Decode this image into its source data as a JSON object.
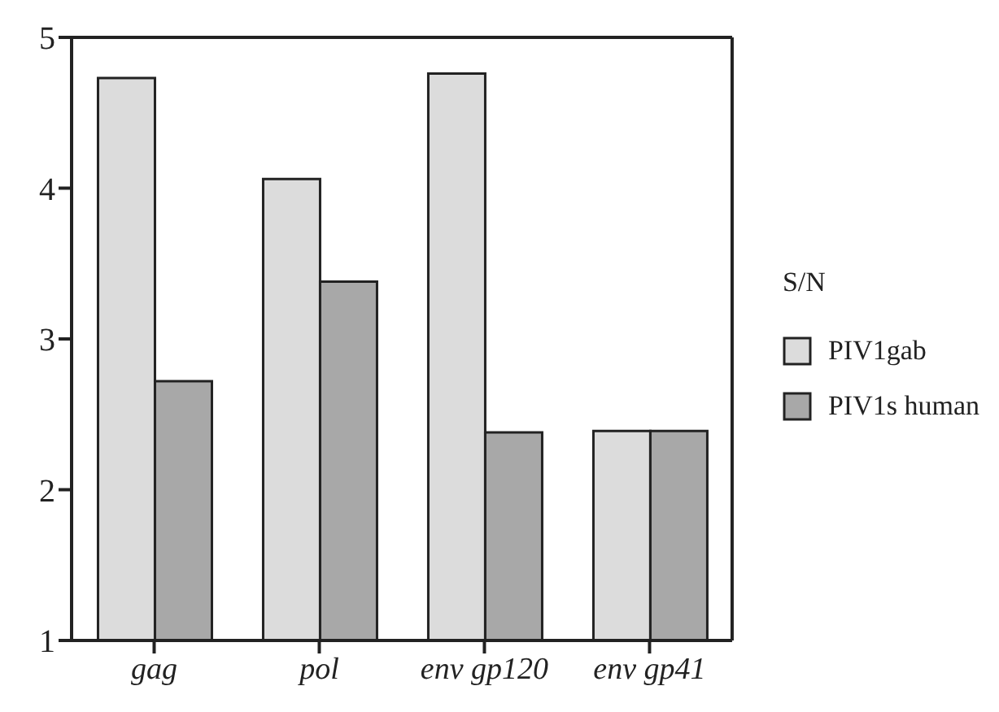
{
  "chart_data": {
    "type": "bar",
    "categories": [
      "gag",
      "pol",
      "env gp120",
      "env gp41"
    ],
    "series": [
      {
        "name": "PIV1gab",
        "color": "#dcdcdc",
        "values": [
          4.73,
          4.06,
          4.76,
          2.39
        ]
      },
      {
        "name": "PIV1s human",
        "color": "#a8a8a8",
        "values": [
          2.72,
          3.38,
          2.38,
          2.39
        ]
      }
    ],
    "legend_title": "S/N",
    "legend": "right",
    "ylim": [
      1,
      5
    ],
    "yticks": [
      1,
      2,
      3,
      4,
      5
    ],
    "grid": false
  }
}
